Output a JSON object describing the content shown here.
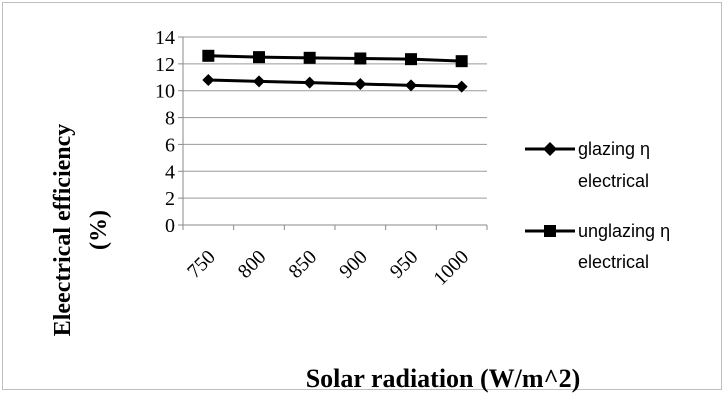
{
  "chart_data": {
    "type": "line",
    "title": "",
    "xlabel": "Solar radiation (W/m^2)",
    "ylabel_lines": [
      "Eleectrical efficiency",
      "(%)"
    ],
    "categories": [
      "750",
      "800",
      "850",
      "900",
      "950",
      "1000"
    ],
    "ylim": [
      0,
      14
    ],
    "yticks": [
      "0",
      "2",
      "4",
      "6",
      "8",
      "10",
      "12",
      "14"
    ],
    "grid": true,
    "legend_position": "right",
    "series": [
      {
        "name_lines": [
          "glazing η",
          "electrical"
        ],
        "marker": "diamond",
        "color": "#000000",
        "values": [
          10.8,
          10.7,
          10.6,
          10.5,
          10.4,
          10.3
        ]
      },
      {
        "name_lines": [
          "unglazing η",
          "electrical"
        ],
        "marker": "square",
        "color": "#000000",
        "values": [
          12.6,
          12.5,
          12.45,
          12.4,
          12.35,
          12.2
        ]
      }
    ]
  }
}
